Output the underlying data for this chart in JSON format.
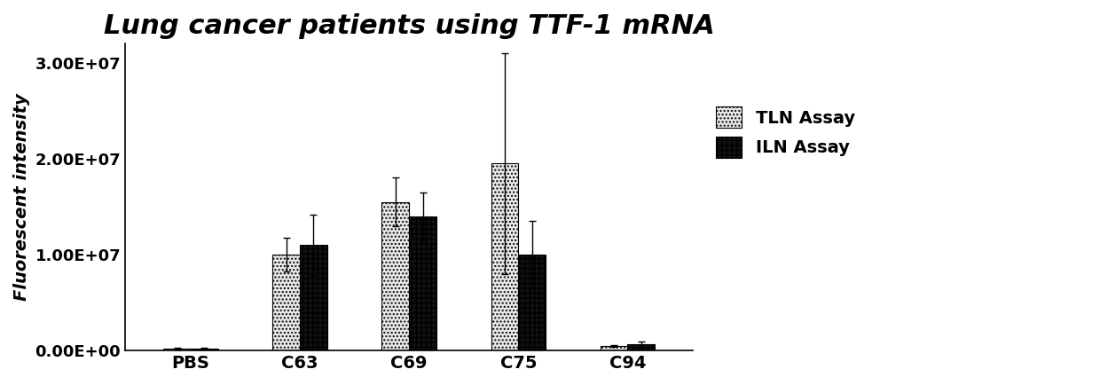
{
  "title": "Lung cancer patients using TTF-1 mRNA",
  "ylabel": "Fluorescent intensity",
  "categories": [
    "PBS",
    "C63",
    "C69",
    "C75",
    "C94"
  ],
  "TLN_values": [
    200000.0,
    10000000.0,
    15500000.0,
    19500000.0,
    500000.0
  ],
  "ILN_values": [
    200000.0,
    11000000.0,
    14000000.0,
    10000000.0,
    650000.0
  ],
  "TLN_errors": [
    100000.0,
    1800000.0,
    2500000.0,
    11500000.0,
    100000.0
  ],
  "ILN_errors": [
    100000.0,
    3200000.0,
    2500000.0,
    3500000.0,
    250000.0
  ],
  "ylim": [
    0,
    32000000.0
  ],
  "yticks": [
    0,
    10000000.0,
    20000000.0,
    30000000.0
  ],
  "ytick_labels": [
    "0.00E+00",
    "1.00E+07",
    "2.00E+07",
    "3.00E+07"
  ],
  "bar_width": 0.25,
  "background_color": "#ffffff",
  "title_fontsize": 22,
  "label_fontsize": 14,
  "tick_fontsize": 13,
  "legend_fontsize": 14,
  "TLN_hatch": "....",
  "ILN_hatch": "+++",
  "TLN_facecolor": "#e8e8e8",
  "ILN_facecolor": "#111111",
  "legend_label_TLN": "TLN Assay",
  "legend_label_ILN": "ILN Assay"
}
